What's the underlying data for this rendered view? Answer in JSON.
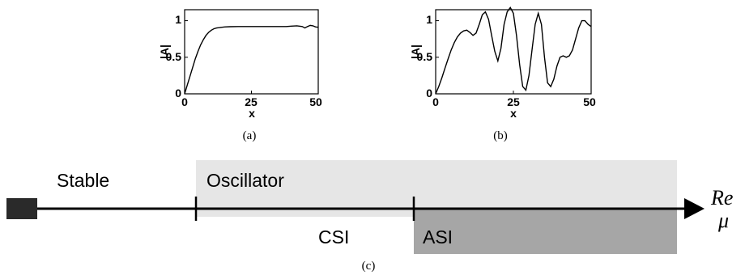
{
  "chart_data": [
    {
      "type": "line",
      "panel_label": "(a)",
      "xlabel": "x",
      "ylabel": "|A|",
      "xlim": [
        0,
        50
      ],
      "ylim": [
        0,
        1.15
      ],
      "x_ticks": [
        "0",
        "25",
        "50"
      ],
      "y_ticks": [
        "0",
        "0.5",
        "1"
      ],
      "series": [
        {
          "x": [
            0,
            1,
            2,
            3,
            4,
            5,
            6,
            7,
            8,
            9,
            10,
            11,
            12,
            13,
            14,
            15,
            17,
            20,
            25,
            30,
            35,
            38,
            40,
            42,
            44,
            45,
            46,
            47,
            48,
            49,
            50
          ],
          "y": [
            0,
            0.12,
            0.24,
            0.36,
            0.48,
            0.58,
            0.67,
            0.74,
            0.8,
            0.84,
            0.87,
            0.89,
            0.9,
            0.905,
            0.91,
            0.915,
            0.918,
            0.92,
            0.92,
            0.92,
            0.92,
            0.92,
            0.925,
            0.93,
            0.92,
            0.9,
            0.92,
            0.935,
            0.93,
            0.915,
            0.91
          ]
        }
      ]
    },
    {
      "type": "line",
      "panel_label": "(b)",
      "xlabel": "x",
      "ylabel": "|A|",
      "xlim": [
        0,
        50
      ],
      "ylim": [
        0,
        1.15
      ],
      "x_ticks": [
        "0",
        "25",
        "50"
      ],
      "y_ticks": [
        "0",
        "0.5",
        "1"
      ],
      "series": [
        {
          "x": [
            0,
            1,
            2,
            3,
            4,
            5,
            6,
            7,
            8,
            9,
            10,
            11,
            12,
            13,
            14,
            15,
            16,
            17,
            18,
            19,
            20,
            21,
            22,
            23,
            24,
            25,
            26,
            27,
            28,
            29,
            30,
            31,
            32,
            33,
            34,
            35,
            36,
            37,
            38,
            39,
            40,
            41,
            42,
            43,
            44,
            45,
            46,
            47,
            48,
            49,
            50
          ],
          "y": [
            0,
            0.1,
            0.22,
            0.35,
            0.48,
            0.6,
            0.7,
            0.78,
            0.83,
            0.86,
            0.87,
            0.84,
            0.8,
            0.83,
            0.95,
            1.08,
            1.12,
            1.02,
            0.8,
            0.58,
            0.45,
            0.62,
            0.95,
            1.12,
            1.18,
            1.1,
            0.8,
            0.4,
            0.1,
            0.05,
            0.25,
            0.6,
            0.95,
            1.1,
            0.95,
            0.5,
            0.15,
            0.1,
            0.2,
            0.38,
            0.5,
            0.52,
            0.5,
            0.52,
            0.6,
            0.75,
            0.9,
            1.0,
            1.0,
            0.95,
            0.92
          ]
        }
      ]
    }
  ],
  "diagram": {
    "panel_label": "(c)",
    "stable_label": "Stable",
    "oscillator_label": "Oscillator",
    "csi_label": "CSI",
    "asi_label": "ASI",
    "axis_label_line1": "Re",
    "axis_label_line2": "μ",
    "colors": {
      "oscillator_fill": "#e6e6e6",
      "asi_fill": "#a6a6a6",
      "axis": "#000000",
      "stable_marker": "#2a2a2a"
    }
  }
}
